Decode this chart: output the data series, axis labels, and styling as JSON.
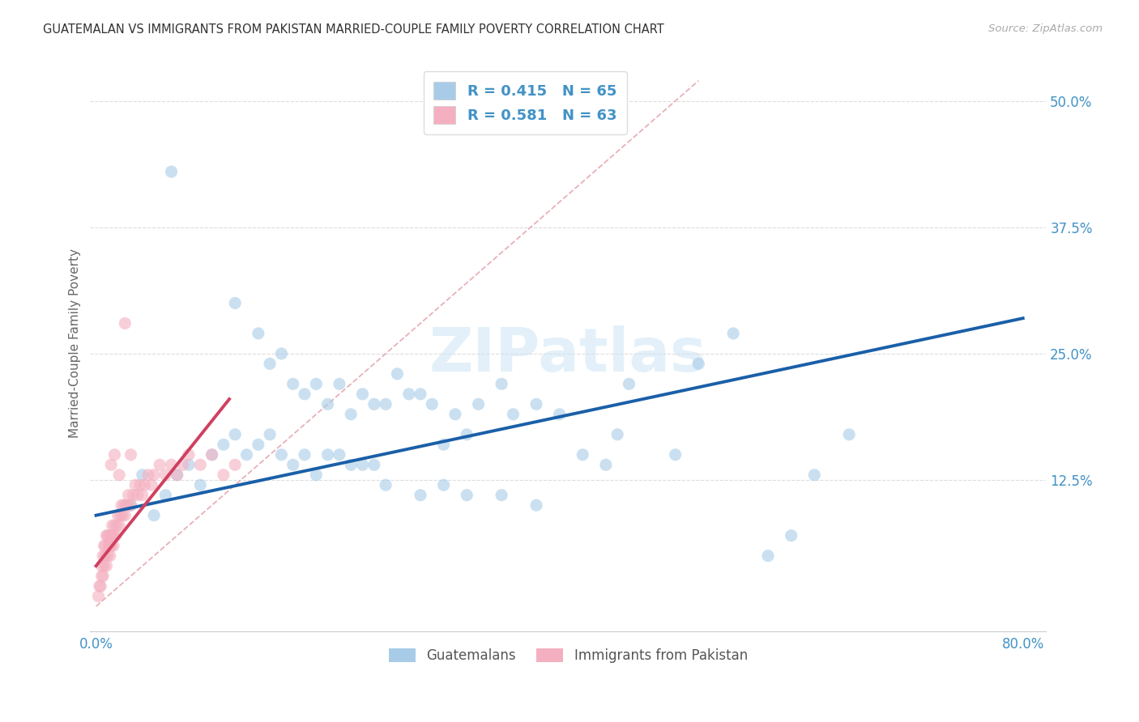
{
  "title": "GUATEMALAN VS IMMIGRANTS FROM PAKISTAN MARRIED-COUPLE FAMILY POVERTY CORRELATION CHART",
  "source": "Source: ZipAtlas.com",
  "ylabel": "Married-Couple Family Poverty",
  "watermark": "ZIPatlas",
  "xlim": [
    -0.005,
    0.82
  ],
  "ylim": [
    -0.025,
    0.545
  ],
  "xtick_positions": [
    0.0,
    0.1,
    0.2,
    0.3,
    0.4,
    0.5,
    0.6,
    0.7,
    0.8
  ],
  "xtick_labels": [
    "0.0%",
    "",
    "",
    "",
    "",
    "",
    "",
    "",
    "80.0%"
  ],
  "yticks_right": [
    0.0,
    0.125,
    0.25,
    0.375,
    0.5
  ],
  "ytick_right_labels": [
    "",
    "12.5%",
    "25.0%",
    "37.5%",
    "50.0%"
  ],
  "legend_blue_R": "0.415",
  "legend_blue_N": "65",
  "legend_pink_R": "0.581",
  "legend_pink_N": "63",
  "blue_color": "#a8cce8",
  "pink_color": "#f4b0c0",
  "blue_line_color": "#1a5fa8",
  "pink_line_color": "#d04060",
  "diag_line_color": "#e8b0b8",
  "legend_label_blue": "Guatemalans",
  "legend_label_pink": "Immigrants from Pakistan",
  "blue_scatter_x": [
    0.065,
    0.12,
    0.14,
    0.15,
    0.16,
    0.17,
    0.18,
    0.19,
    0.2,
    0.21,
    0.22,
    0.23,
    0.24,
    0.25,
    0.26,
    0.27,
    0.28,
    0.29,
    0.3,
    0.31,
    0.32,
    0.33,
    0.35,
    0.36,
    0.38,
    0.4,
    0.42,
    0.44,
    0.46,
    0.5,
    0.52,
    0.55,
    0.58,
    0.6,
    0.62,
    0.65,
    0.03,
    0.04,
    0.05,
    0.06,
    0.07,
    0.08,
    0.09,
    0.1,
    0.11,
    0.12,
    0.13,
    0.14,
    0.15,
    0.16,
    0.17,
    0.18,
    0.19,
    0.2,
    0.21,
    0.22,
    0.23,
    0.24,
    0.25,
    0.28,
    0.3,
    0.32,
    0.35,
    0.38,
    0.45
  ],
  "blue_scatter_y": [
    0.43,
    0.3,
    0.27,
    0.24,
    0.25,
    0.22,
    0.21,
    0.22,
    0.2,
    0.22,
    0.19,
    0.21,
    0.2,
    0.2,
    0.23,
    0.21,
    0.21,
    0.2,
    0.16,
    0.19,
    0.17,
    0.2,
    0.22,
    0.19,
    0.2,
    0.19,
    0.15,
    0.14,
    0.22,
    0.15,
    0.24,
    0.27,
    0.05,
    0.07,
    0.13,
    0.17,
    0.1,
    0.13,
    0.09,
    0.11,
    0.13,
    0.14,
    0.12,
    0.15,
    0.16,
    0.17,
    0.15,
    0.16,
    0.17,
    0.15,
    0.14,
    0.15,
    0.13,
    0.15,
    0.15,
    0.14,
    0.14,
    0.14,
    0.12,
    0.11,
    0.12,
    0.11,
    0.11,
    0.1,
    0.17
  ],
  "pink_scatter_x": [
    0.002,
    0.003,
    0.004,
    0.005,
    0.005,
    0.006,
    0.006,
    0.007,
    0.007,
    0.008,
    0.008,
    0.009,
    0.009,
    0.01,
    0.01,
    0.011,
    0.011,
    0.012,
    0.012,
    0.013,
    0.013,
    0.014,
    0.014,
    0.015,
    0.015,
    0.016,
    0.017,
    0.018,
    0.019,
    0.02,
    0.021,
    0.022,
    0.023,
    0.024,
    0.025,
    0.026,
    0.027,
    0.028,
    0.03,
    0.032,
    0.034,
    0.036,
    0.038,
    0.04,
    0.042,
    0.045,
    0.048,
    0.05,
    0.055,
    0.06,
    0.065,
    0.07,
    0.075,
    0.08,
    0.09,
    0.1,
    0.11,
    0.12,
    0.013,
    0.016,
    0.02,
    0.025,
    0.03
  ],
  "pink_scatter_y": [
    0.01,
    0.02,
    0.02,
    0.03,
    0.04,
    0.03,
    0.05,
    0.04,
    0.06,
    0.05,
    0.06,
    0.04,
    0.07,
    0.05,
    0.07,
    0.06,
    0.07,
    0.05,
    0.06,
    0.07,
    0.06,
    0.07,
    0.08,
    0.06,
    0.07,
    0.08,
    0.07,
    0.08,
    0.09,
    0.08,
    0.09,
    0.1,
    0.09,
    0.1,
    0.09,
    0.1,
    0.1,
    0.11,
    0.1,
    0.11,
    0.12,
    0.11,
    0.12,
    0.11,
    0.12,
    0.13,
    0.12,
    0.13,
    0.14,
    0.13,
    0.14,
    0.13,
    0.14,
    0.15,
    0.14,
    0.15,
    0.13,
    0.14,
    0.14,
    0.15,
    0.13,
    0.28,
    0.15
  ],
  "blue_line_x": [
    0.0,
    0.8
  ],
  "blue_line_y": [
    0.09,
    0.285
  ],
  "pink_line_x": [
    0.0,
    0.115
  ],
  "pink_line_y": [
    0.04,
    0.205
  ],
  "diag_line_x": [
    0.0,
    0.52
  ],
  "diag_line_y": [
    0.0,
    0.52
  ],
  "title_color": "#333333",
  "axis_color": "#4292c6",
  "grid_color": "#dddddd",
  "bg_color": "#ffffff"
}
